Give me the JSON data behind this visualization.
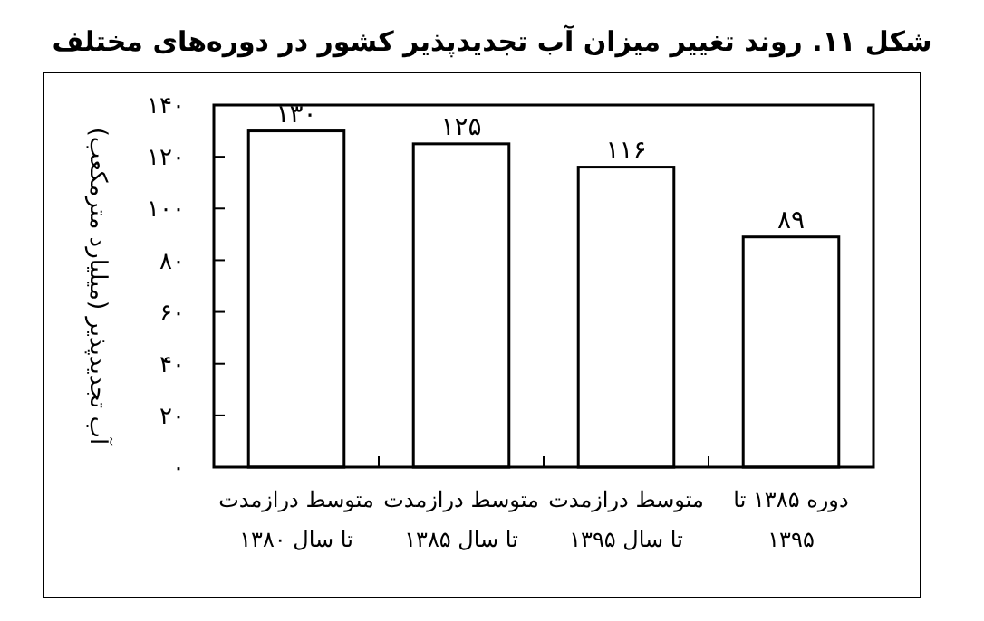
{
  "chart_data": {
    "type": "bar",
    "title": "شکل ۱۱. روند تغییر میزان آب تجدیدپذیر کشور در دوره‌های مختلف",
    "ylabel": "آب تجدیدپذیر (میلیارد مترمکعب)",
    "categories": [
      "متوسط درازمدت\nتا سال ۱۳۸۰",
      "متوسط درازمدت\nتا سال ۱۳۸۵",
      "متوسط درازمدت\nتا سال ۱۳۹۵",
      "دوره ۱۳۸۵ تا\n۱۳۹۵"
    ],
    "values": [
      130,
      125,
      116,
      89
    ],
    "color": "#ffffff",
    "value_labels": [
      "۱۳۰",
      "۱۲۵",
      "۱۱۶",
      "۸۹"
    ],
    "ylim": [
      0,
      140
    ],
    "yticks": [
      {
        "value": 0,
        "label": "۰"
      },
      {
        "value": 20,
        "label": "۲۰"
      },
      {
        "value": 40,
        "label": "۴۰"
      },
      {
        "value": 60,
        "label": "۶۰"
      },
      {
        "value": 80,
        "label": "۸۰"
      },
      {
        "value": 100,
        "label": "۱۰۰"
      },
      {
        "value": 120,
        "label": "۱۲۰"
      },
      {
        "value": 140,
        "label": "۱۴۰"
      }
    ],
    "grid": false
  }
}
